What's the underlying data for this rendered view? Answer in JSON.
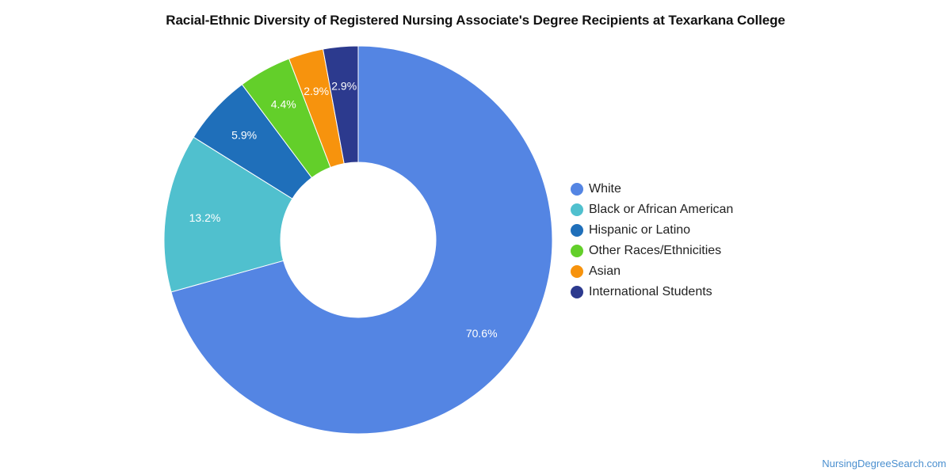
{
  "chart_data": {
    "type": "pie",
    "title": "Racial-Ethnic Diversity of Registered Nursing Associate's Degree Recipients at Texarkana College",
    "donut": true,
    "legend_position": "right",
    "series": [
      {
        "name": "White",
        "value": 70.6,
        "label": "70.6%",
        "color": "#5485e3"
      },
      {
        "name": "Black or African American",
        "value": 13.2,
        "label": "13.2%",
        "color": "#50c0ce"
      },
      {
        "name": "Hispanic or Latino",
        "value": 5.9,
        "label": "5.9%",
        "color": "#1f6fba"
      },
      {
        "name": "Other Races/Ethnicities",
        "value": 4.4,
        "label": "4.4%",
        "color": "#63cf2a"
      },
      {
        "name": "Asian",
        "value": 2.9,
        "label": "2.9%",
        "color": "#f7930d"
      },
      {
        "name": "International Students",
        "value": 2.9,
        "label": "2.9%",
        "color": "#2c3a8e"
      }
    ]
  },
  "watermark": "NursingDegreeSearch.com"
}
